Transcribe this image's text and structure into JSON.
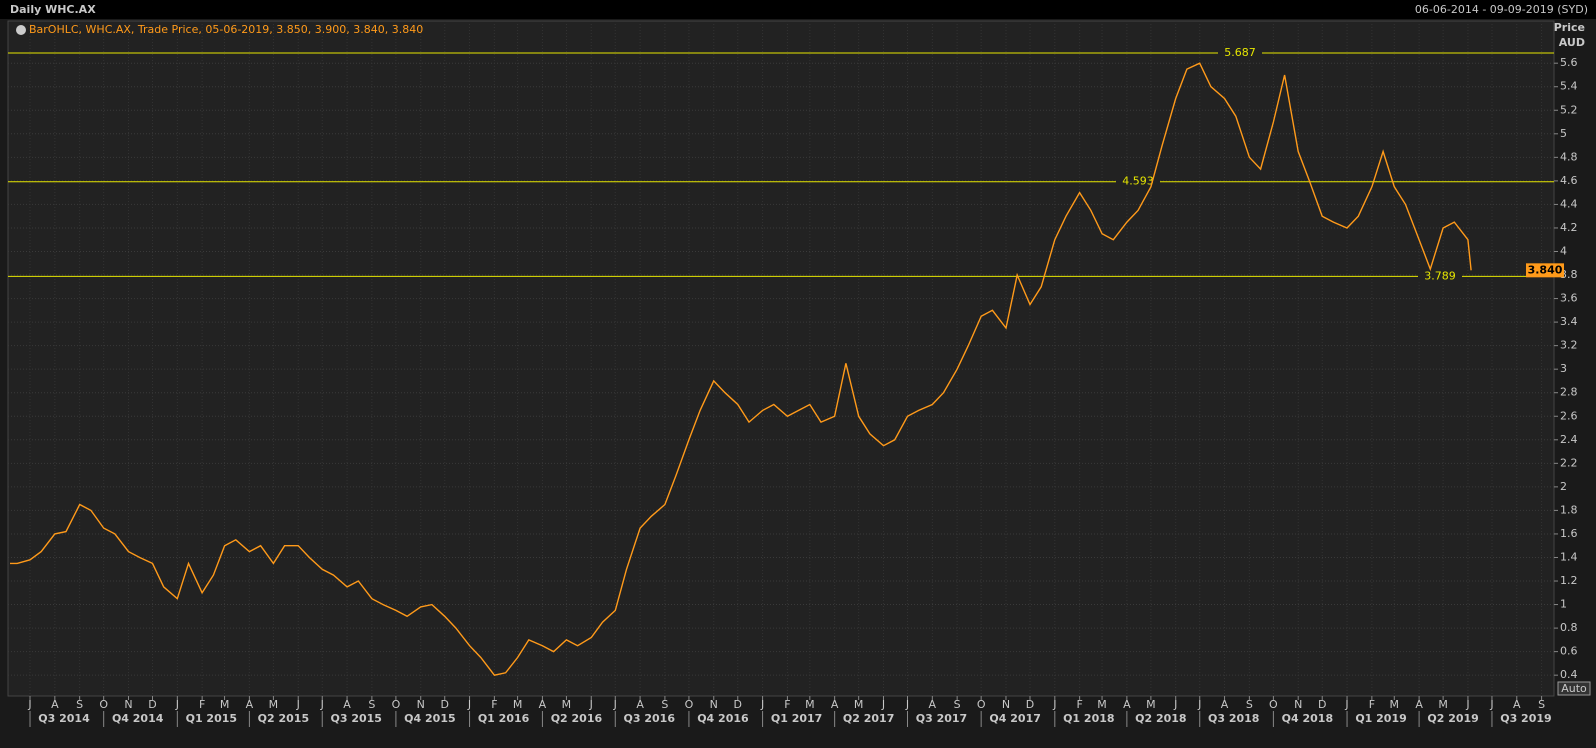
{
  "chart_data": {
    "type": "line",
    "title": "Daily WHC.AX",
    "date_range": "06-06-2014 - 09-09-2019 (SYD)",
    "y_axis_label": "Price",
    "y_axis_unit": "AUD",
    "auto_button": "Auto",
    "last_value_label": "3.840",
    "levels": [
      5.687,
      4.593,
      3.789
    ],
    "xlim": [
      "2014-06-06",
      "2019-09-09"
    ],
    "ylim": [
      0.24,
      5.95
    ],
    "yticks": [
      0.4,
      0.6,
      0.8,
      1,
      1.2,
      1.4,
      1.6,
      1.8,
      2,
      2.2,
      2.4,
      2.6,
      2.8,
      3,
      3.2,
      3.4,
      3.6,
      3.8,
      4,
      4.2,
      4.4,
      4.6,
      4.8,
      5,
      5.2,
      5.4,
      5.6
    ],
    "grid": true,
    "xticks": [
      {
        "value": "2014-07-01",
        "label": "J"
      },
      {
        "value": "2014-08-01",
        "label": "A"
      },
      {
        "value": "2014-09-01",
        "label": "S"
      },
      {
        "value": "2014-10-01",
        "label": "O"
      },
      {
        "value": "2014-11-01",
        "label": "N"
      },
      {
        "value": "2014-12-01",
        "label": "D"
      },
      {
        "value": "2015-01-01",
        "label": "J"
      },
      {
        "value": "2015-02-01",
        "label": "F"
      },
      {
        "value": "2015-03-01",
        "label": "M"
      },
      {
        "value": "2015-04-01",
        "label": "A"
      },
      {
        "value": "2015-05-01",
        "label": "M"
      },
      {
        "value": "2015-06-01",
        "label": "J"
      },
      {
        "value": "2015-07-01",
        "label": "J"
      },
      {
        "value": "2015-08-01",
        "label": "A"
      },
      {
        "value": "2015-09-01",
        "label": "S"
      },
      {
        "value": "2015-10-01",
        "label": "O"
      },
      {
        "value": "2015-11-01",
        "label": "N"
      },
      {
        "value": "2015-12-01",
        "label": "D"
      },
      {
        "value": "2016-01-01",
        "label": "J"
      },
      {
        "value": "2016-02-01",
        "label": "F"
      },
      {
        "value": "2016-03-01",
        "label": "M"
      },
      {
        "value": "2016-04-01",
        "label": "A"
      },
      {
        "value": "2016-05-01",
        "label": "M"
      },
      {
        "value": "2016-06-01",
        "label": "J"
      },
      {
        "value": "2016-07-01",
        "label": "J"
      },
      {
        "value": "2016-08-01",
        "label": "A"
      },
      {
        "value": "2016-09-01",
        "label": "S"
      },
      {
        "value": "2016-10-01",
        "label": "O"
      },
      {
        "value": "2016-11-01",
        "label": "N"
      },
      {
        "value": "2016-12-01",
        "label": "D"
      },
      {
        "value": "2017-01-01",
        "label": "J"
      },
      {
        "value": "2017-02-01",
        "label": "F"
      },
      {
        "value": "2017-03-01",
        "label": "M"
      },
      {
        "value": "2017-04-01",
        "label": "A"
      },
      {
        "value": "2017-05-01",
        "label": "M"
      },
      {
        "value": "2017-06-01",
        "label": "J"
      },
      {
        "value": "2017-07-01",
        "label": "J"
      },
      {
        "value": "2017-08-01",
        "label": "A"
      },
      {
        "value": "2017-09-01",
        "label": "S"
      },
      {
        "value": "2017-10-01",
        "label": "O"
      },
      {
        "value": "2017-11-01",
        "label": "N"
      },
      {
        "value": "2017-12-01",
        "label": "D"
      },
      {
        "value": "2018-01-01",
        "label": "J"
      },
      {
        "value": "2018-02-01",
        "label": "F"
      },
      {
        "value": "2018-03-01",
        "label": "M"
      },
      {
        "value": "2018-04-01",
        "label": "A"
      },
      {
        "value": "2018-05-01",
        "label": "M"
      },
      {
        "value": "2018-06-01",
        "label": "J"
      },
      {
        "value": "2018-07-01",
        "label": "J"
      },
      {
        "value": "2018-08-01",
        "label": "A"
      },
      {
        "value": "2018-09-01",
        "label": "S"
      },
      {
        "value": "2018-10-01",
        "label": "O"
      },
      {
        "value": "2018-11-01",
        "label": "N"
      },
      {
        "value": "2018-12-01",
        "label": "D"
      },
      {
        "value": "2019-01-01",
        "label": "J"
      },
      {
        "value": "2019-02-01",
        "label": "F"
      },
      {
        "value": "2019-03-01",
        "label": "M"
      },
      {
        "value": "2019-04-01",
        "label": "A"
      },
      {
        "value": "2019-05-01",
        "label": "M"
      },
      {
        "value": "2019-06-01",
        "label": "J"
      },
      {
        "value": "2019-07-01",
        "label": "J"
      },
      {
        "value": "2019-08-01",
        "label": "A"
      },
      {
        "value": "2019-09-01",
        "label": "S"
      }
    ],
    "quarters": [
      {
        "value": "2014-07-01",
        "label": "Q3 2014"
      },
      {
        "value": "2014-10-01",
        "label": "Q4 2014"
      },
      {
        "value": "2015-01-01",
        "label": "Q1 2015"
      },
      {
        "value": "2015-04-01",
        "label": "Q2 2015"
      },
      {
        "value": "2015-07-01",
        "label": "Q3 2015"
      },
      {
        "value": "2015-10-01",
        "label": "Q4 2015"
      },
      {
        "value": "2016-01-01",
        "label": "Q1 2016"
      },
      {
        "value": "2016-04-01",
        "label": "Q2 2016"
      },
      {
        "value": "2016-07-01",
        "label": "Q3 2016"
      },
      {
        "value": "2016-10-01",
        "label": "Q4 2016"
      },
      {
        "value": "2017-01-01",
        "label": "Q1 2017"
      },
      {
        "value": "2017-04-01",
        "label": "Q2 2017"
      },
      {
        "value": "2017-07-01",
        "label": "Q3 2017"
      },
      {
        "value": "2017-10-01",
        "label": "Q4 2017"
      },
      {
        "value": "2018-01-01",
        "label": "Q1 2018"
      },
      {
        "value": "2018-04-01",
        "label": "Q2 2018"
      },
      {
        "value": "2018-07-01",
        "label": "Q3 2018"
      },
      {
        "value": "2018-10-01",
        "label": "Q4 2018"
      },
      {
        "value": "2019-01-01",
        "label": "Q1 2019"
      },
      {
        "value": "2019-04-01",
        "label": "Q2 2019"
      },
      {
        "value": "2019-07-01",
        "label": "Q3 2019"
      }
    ],
    "x": [
      "2014-06-06",
      "2014-06-15",
      "2014-07-01",
      "2014-07-15",
      "2014-08-01",
      "2014-08-15",
      "2014-09-01",
      "2014-09-15",
      "2014-10-01",
      "2014-10-15",
      "2014-11-01",
      "2014-11-15",
      "2014-12-01",
      "2014-12-15",
      "2015-01-01",
      "2015-01-15",
      "2015-02-01",
      "2015-02-15",
      "2015-03-01",
      "2015-03-15",
      "2015-04-01",
      "2015-04-15",
      "2015-05-01",
      "2015-05-15",
      "2015-06-01",
      "2015-06-15",
      "2015-07-01",
      "2015-07-15",
      "2015-08-01",
      "2015-08-15",
      "2015-09-01",
      "2015-09-15",
      "2015-10-01",
      "2015-10-15",
      "2015-11-01",
      "2015-11-15",
      "2015-12-01",
      "2015-12-15",
      "2016-01-01",
      "2016-01-15",
      "2016-02-01",
      "2016-02-15",
      "2016-03-01",
      "2016-03-15",
      "2016-04-01",
      "2016-04-15",
      "2016-05-01",
      "2016-05-15",
      "2016-06-01",
      "2016-06-15",
      "2016-07-01",
      "2016-07-15",
      "2016-08-01",
      "2016-08-15",
      "2016-09-01",
      "2016-09-15",
      "2016-10-01",
      "2016-10-15",
      "2016-11-01",
      "2016-11-15",
      "2016-12-01",
      "2016-12-15",
      "2017-01-01",
      "2017-01-15",
      "2017-02-01",
      "2017-02-15",
      "2017-03-01",
      "2017-03-15",
      "2017-04-01",
      "2017-04-15",
      "2017-05-01",
      "2017-05-15",
      "2017-06-01",
      "2017-06-15",
      "2017-07-01",
      "2017-07-15",
      "2017-08-01",
      "2017-08-15",
      "2017-09-01",
      "2017-09-15",
      "2017-10-01",
      "2017-10-15",
      "2017-11-01",
      "2017-11-15",
      "2017-12-01",
      "2017-12-15",
      "2018-01-01",
      "2018-01-15",
      "2018-02-01",
      "2018-02-15",
      "2018-03-01",
      "2018-03-15",
      "2018-04-01",
      "2018-04-15",
      "2018-05-01",
      "2018-05-15",
      "2018-06-01",
      "2018-06-15",
      "2018-07-01",
      "2018-07-15",
      "2018-08-01",
      "2018-08-15",
      "2018-09-01",
      "2018-09-15",
      "2018-10-01",
      "2018-10-15",
      "2018-11-01",
      "2018-11-15",
      "2018-12-01",
      "2018-12-15",
      "2019-01-01",
      "2019-01-15",
      "2019-02-01",
      "2019-02-15",
      "2019-03-01",
      "2019-03-15",
      "2019-04-01",
      "2019-04-15",
      "2019-05-01",
      "2019-05-15",
      "2019-06-01",
      "2019-06-05"
    ],
    "series": [
      {
        "name": "BarOHLC, WHC.AX, Trade Price, 05-06-2019, 3.850, 3.900, 3.840, 3.840",
        "color": "#ff9a1a",
        "values": [
          1.35,
          1.35,
          1.38,
          1.45,
          1.6,
          1.62,
          1.85,
          1.8,
          1.65,
          1.6,
          1.45,
          1.4,
          1.35,
          1.15,
          1.05,
          1.35,
          1.1,
          1.25,
          1.5,
          1.55,
          1.45,
          1.5,
          1.35,
          1.5,
          1.5,
          1.4,
          1.3,
          1.25,
          1.15,
          1.2,
          1.05,
          1.0,
          0.95,
          0.9,
          0.98,
          1.0,
          0.9,
          0.8,
          0.65,
          0.55,
          0.4,
          0.42,
          0.55,
          0.7,
          0.65,
          0.6,
          0.7,
          0.65,
          0.72,
          0.85,
          0.95,
          1.3,
          1.65,
          1.75,
          1.85,
          2.1,
          2.4,
          2.65,
          2.9,
          2.8,
          2.7,
          2.55,
          2.65,
          2.7,
          2.6,
          2.65,
          2.7,
          2.55,
          2.6,
          3.05,
          2.6,
          2.45,
          2.35,
          2.4,
          2.6,
          2.65,
          2.7,
          2.8,
          3.0,
          3.2,
          3.45,
          3.5,
          3.35,
          3.8,
          3.55,
          3.7,
          4.1,
          4.3,
          4.5,
          4.35,
          4.15,
          4.1,
          4.25,
          4.35,
          4.55,
          4.9,
          5.3,
          5.55,
          5.6,
          5.4,
          5.3,
          5.15,
          4.8,
          4.7,
          5.1,
          5.5,
          4.85,
          4.6,
          4.3,
          4.25,
          4.2,
          4.3,
          4.55,
          4.85,
          4.55,
          4.4,
          4.1,
          3.85,
          4.2,
          4.25,
          4.1,
          3.84
        ]
      }
    ]
  }
}
